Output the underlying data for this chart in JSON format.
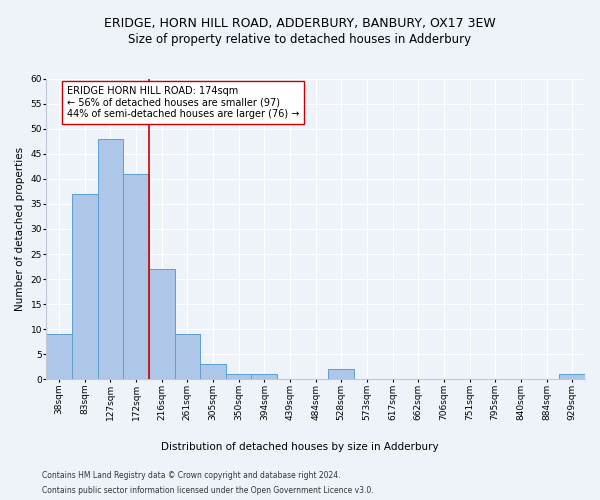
{
  "title": "ERIDGE, HORN HILL ROAD, ADDERBURY, BANBURY, OX17 3EW",
  "subtitle": "Size of property relative to detached houses in Adderbury",
  "xlabel": "Distribution of detached houses by size in Adderbury",
  "ylabel": "Number of detached properties",
  "categories": [
    "38sqm",
    "83sqm",
    "127sqm",
    "172sqm",
    "216sqm",
    "261sqm",
    "305sqm",
    "350sqm",
    "394sqm",
    "439sqm",
    "484sqm",
    "528sqm",
    "573sqm",
    "617sqm",
    "662sqm",
    "706sqm",
    "751sqm",
    "795sqm",
    "840sqm",
    "884sqm",
    "929sqm"
  ],
  "values": [
    9,
    37,
    48,
    41,
    22,
    9,
    3,
    1,
    1,
    0,
    0,
    2,
    0,
    0,
    0,
    0,
    0,
    0,
    0,
    0,
    1
  ],
  "bar_color": "#aec6e8",
  "bar_edge_color": "#5a9fd4",
  "vline_x_idx": 3.5,
  "vline_color": "#cc0000",
  "annotation_text": "ERIDGE HORN HILL ROAD: 174sqm\n← 56% of detached houses are smaller (97)\n44% of semi-detached houses are larger (76) →",
  "annotation_box_color": "#ffffff",
  "annotation_box_edge_color": "#cc0000",
  "ylim": [
    0,
    60
  ],
  "yticks": [
    0,
    5,
    10,
    15,
    20,
    25,
    30,
    35,
    40,
    45,
    50,
    55,
    60
  ],
  "footer_line1": "Contains HM Land Registry data © Crown copyright and database right 2024.",
  "footer_line2": "Contains public sector information licensed under the Open Government Licence v3.0.",
  "bg_color": "#eef2f9",
  "grid_color": "#ffffff",
  "title_fontsize": 9,
  "subtitle_fontsize": 8.5,
  "axis_label_fontsize": 7.5,
  "tick_fontsize": 6.5,
  "annotation_fontsize": 7,
  "footer_fontsize": 5.5
}
